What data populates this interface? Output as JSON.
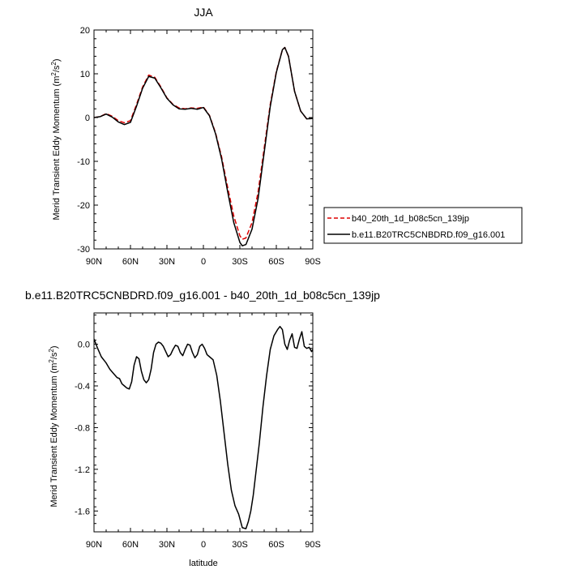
{
  "chart_data": [
    {
      "type": "line",
      "title": "JJA",
      "xlabel": "",
      "ylabel": "Merid Transient Eddy Momentum (m²/s²)",
      "ylabel_parts": {
        "text": "Merid Transient Eddy Momentum (m",
        "sup1": "2",
        "mid": "/s",
        "sup2": "2",
        "end": ")"
      },
      "xlim": [
        -90,
        90
      ],
      "ylim": [
        -30,
        20
      ],
      "x_ticks": [
        -90,
        -60,
        -30,
        0,
        30,
        60,
        90
      ],
      "x_tick_labels": [
        "90N",
        "60N",
        "30N",
        "0",
        "30S",
        "60S",
        "90S"
      ],
      "y_ticks": [
        -30,
        -20,
        -10,
        0,
        10,
        20
      ],
      "y_tick_labels": [
        "-30",
        "-20",
        "-10",
        "0",
        "10",
        "20"
      ],
      "grid": false,
      "legend_position": "outside-right",
      "series": [
        {
          "name": "b40_20th_1d_b08c5cn_139jp",
          "color": "#dd0000",
          "dash": true,
          "x": [
            -90,
            -85,
            -80,
            -75,
            -70,
            -65,
            -60,
            -55,
            -50,
            -45,
            -40,
            -35,
            -30,
            -25,
            -20,
            -15,
            -10,
            -5,
            0,
            5,
            10,
            15,
            20,
            25,
            30,
            32,
            35,
            40,
            45,
            50,
            55,
            60,
            65,
            67,
            70,
            75,
            80,
            85,
            90
          ],
          "y": [
            0,
            0.2,
            0.9,
            0.3,
            -0.7,
            -1.2,
            -0.7,
            3,
            7,
            9.7,
            9.2,
            7,
            4.5,
            3,
            2.2,
            2,
            2.2,
            2.1,
            2.4,
            0.5,
            -3.5,
            -9,
            -16,
            -22.5,
            -27,
            -27.8,
            -27.5,
            -24,
            -17,
            -7,
            3,
            10.5,
            15.5,
            16,
            14,
            6,
            1.5,
            -0.3,
            -0.2
          ]
        },
        {
          "name": "b.e11.B20TRC5CNBDRD.f09_g16.001",
          "color": "#000000",
          "dash": false,
          "x": [
            -90,
            -85,
            -80,
            -75,
            -70,
            -65,
            -60,
            -55,
            -50,
            -45,
            -40,
            -35,
            -30,
            -25,
            -20,
            -15,
            -10,
            -5,
            0,
            5,
            10,
            15,
            20,
            25,
            30,
            32,
            35,
            40,
            45,
            50,
            55,
            60,
            65,
            67,
            70,
            75,
            80,
            85,
            90
          ],
          "y": [
            0,
            0.2,
            0.8,
            0.1,
            -1,
            -1.6,
            -1.1,
            2.6,
            6.7,
            9.4,
            9,
            6.8,
            4.4,
            2.9,
            2,
            1.9,
            2.1,
            1.9,
            2.3,
            0.4,
            -3.7,
            -9.5,
            -17,
            -24,
            -28.5,
            -29.3,
            -29,
            -25.5,
            -18.5,
            -8,
            2.5,
            10.3,
            15.5,
            16,
            14,
            6,
            1.5,
            -0.3,
            -0.2
          ]
        }
      ]
    },
    {
      "type": "line",
      "title": "b.e11.B20TRC5CNBDRD.f09_g16.001 - b40_20th_1d_b08c5cn_139jp",
      "xlabel": "latitude",
      "ylabel": "Merid Transient Eddy Momentum (m²/s²)",
      "ylabel_parts": {
        "text": "Merid Transient Eddy Momentum (m",
        "sup1": "2",
        "mid": "/s",
        "sup2": "2",
        "end": ")"
      },
      "xlim": [
        -90,
        90
      ],
      "ylim": [
        -1.8,
        0.3
      ],
      "x_ticks": [
        -90,
        -60,
        -30,
        0,
        30,
        60,
        90
      ],
      "x_tick_labels": [
        "90N",
        "60N",
        "30N",
        "0",
        "30S",
        "60S",
        "90S"
      ],
      "y_ticks": [
        -1.6,
        -1.2,
        -0.8,
        -0.4,
        0
      ],
      "y_tick_labels": [
        "-1.6",
        "-1.2",
        "-0.8",
        "-0.4",
        "0.0"
      ],
      "grid": false,
      "series": [
        {
          "color": "#000000",
          "dash": false,
          "x": [
            -90,
            -87,
            -84,
            -80,
            -77,
            -74,
            -71,
            -69,
            -67,
            -65,
            -63,
            -61,
            -59,
            -57,
            -55,
            -53,
            -51,
            -49,
            -47,
            -45,
            -43,
            -41,
            -39,
            -37,
            -35,
            -33,
            -31,
            -29,
            -27,
            -25,
            -23,
            -21,
            -19,
            -17,
            -15,
            -13,
            -11,
            -9,
            -7,
            -5,
            -3,
            -1,
            1,
            3,
            5,
            8,
            11,
            14,
            17,
            20,
            23,
            26,
            29,
            32,
            35,
            37,
            39,
            41,
            43,
            46,
            49,
            52,
            55,
            58,
            61,
            63,
            65,
            67,
            69,
            71,
            73,
            75,
            77,
            79,
            81,
            83,
            85,
            87,
            89,
            90
          ],
          "y": [
            0.05,
            -0.04,
            -0.12,
            -0.18,
            -0.24,
            -0.28,
            -0.32,
            -0.33,
            -0.38,
            -0.4,
            -0.42,
            -0.43,
            -0.36,
            -0.2,
            -0.12,
            -0.14,
            -0.26,
            -0.34,
            -0.37,
            -0.34,
            -0.24,
            -0.08,
            0.0,
            0.02,
            0.01,
            -0.02,
            -0.07,
            -0.12,
            -0.1,
            -0.05,
            -0.01,
            -0.02,
            -0.08,
            -0.11,
            -0.05,
            0.0,
            -0.01,
            -0.08,
            -0.13,
            -0.1,
            -0.02,
            0.0,
            -0.04,
            -0.1,
            -0.12,
            -0.15,
            -0.3,
            -0.55,
            -0.85,
            -1.15,
            -1.4,
            -1.55,
            -1.63,
            -1.76,
            -1.77,
            -1.7,
            -1.6,
            -1.45,
            -1.25,
            -0.95,
            -0.6,
            -0.3,
            -0.05,
            0.08,
            0.14,
            0.17,
            0.14,
            0.0,
            -0.05,
            0.04,
            0.1,
            -0.03,
            -0.04,
            0.05,
            0.12,
            -0.02,
            -0.04,
            -0.03,
            -0.07,
            -0.05
          ]
        }
      ]
    }
  ]
}
